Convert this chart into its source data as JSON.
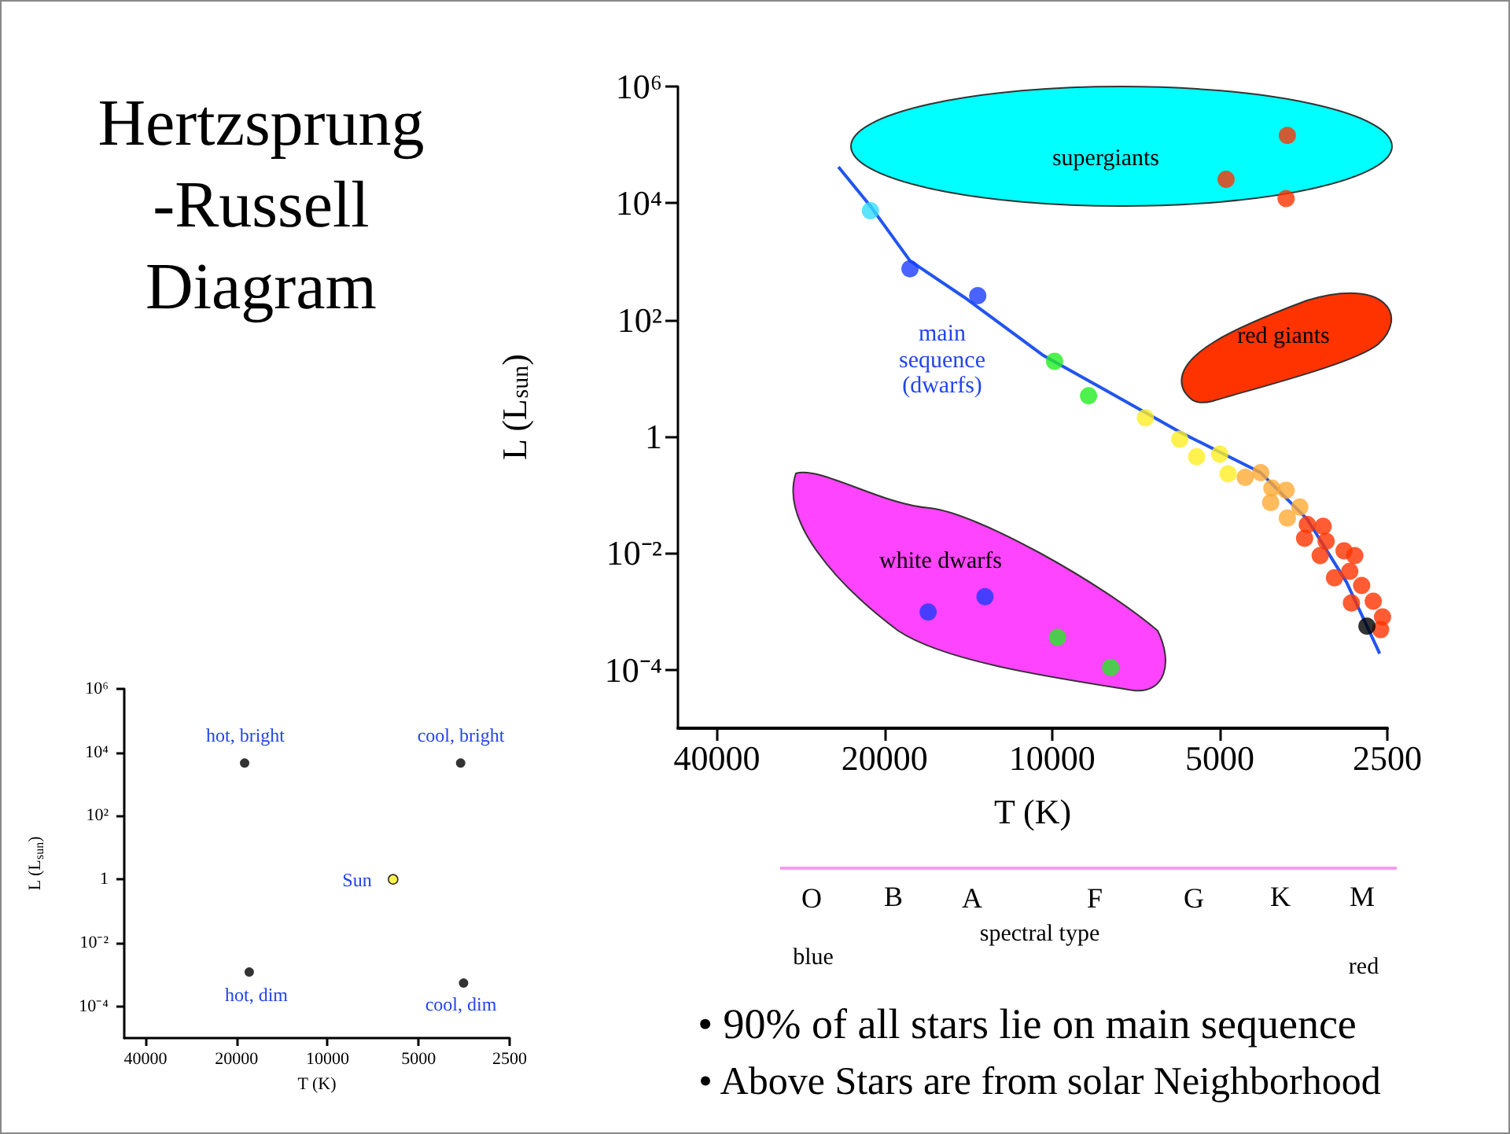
{
  "chart_data": [
    {
      "type": "scatter",
      "title": "Hertzsprung\n-Russell\nDiagram",
      "xlabel": "T (K)",
      "ylabel": "L (L$_{sun}$)",
      "log": "xy",
      "grid": false,
      "marker": "circle",
      "xlim": [
        47000,
        2500
      ],
      "xticks": [
        40000,
        20000,
        10000,
        5000,
        2500
      ],
      "ylim": [
        1e-05,
        1000000
      ],
      "yticks": [
        {
          "value": 1000000,
          "label": "10⁶"
        },
        {
          "value": 10000,
          "label": "10⁴"
        },
        {
          "value": 100,
          "label": "10²"
        },
        1,
        {
          "value": 0.01,
          "label": "10⁻²"
        },
        {
          "value": 0.0001,
          "label": "10⁻⁴"
        }
      ],
      "series": [
        {
          "type": "line",
          "color": "#2255ee",
          "marker": "none",
          "x": [
            24200,
            21200,
            18000,
            14400,
            10400,
            8060,
            5830,
            4220,
            3480,
            2960,
            2580
          ],
          "values": [
            41900,
            8900,
            1030,
            246,
            25,
            6.4,
            1.13,
            0.24,
            0.038,
            0.0032,
            0.00019
          ]
        },
        {
          "color": "#33ddff",
          "x": [
            21200
          ],
          "values": [
            7400
          ]
        },
        {
          "color": "#1a3cff",
          "x": [
            18000,
            13600,
            16700,
            13200
          ],
          "values": [
            750,
            260,
            0.00098,
            0.0018
          ]
        },
        {
          "color": "#22ee22",
          "x": [
            9900,
            8600,
            9780,
            7850
          ],
          "values": [
            19.5,
            5,
            0.00036,
            0.00011
          ]
        },
        {
          "color": "#ffee22",
          "x": [
            6800,
            5900,
            5500,
            5000,
            4830
          ],
          "values": [
            2.1,
            0.9,
            0.45,
            0.5,
            0.23
          ]
        },
        {
          "color": "#ffaa33",
          "x": [
            4500,
            4220,
            4030,
            3800,
            4050,
            3590,
            3780
          ],
          "values": [
            0.2,
            0.24,
            0.13,
            0.12,
            0.074,
            0.062,
            0.04
          ]
        },
        {
          "color": "#ff3300",
          "x": [
            3780,
            4870,
            3800,
            3480,
            3260,
            3520,
            3220,
            2990,
            3300,
            2860,
            3110,
            2920,
            2780,
            2900,
            2650,
            2550,
            2570
          ],
          "values": [
            145000,
            25700,
            12000,
            0.031,
            0.029,
            0.018,
            0.016,
            0.011,
            0.0091,
            0.0091,
            0.0038,
            0.0049,
            0.0028,
            0.0014,
            0.0015,
            0.00081,
            0.00049
          ]
        },
        {
          "color": "#000000",
          "x": [
            2720
          ],
          "values": [
            0.00056
          ]
        }
      ],
      "annotations": [
        "supergiants",
        "red giants",
        "main\nsequence\n(dwarfs)",
        "white dwarfs",
        "O",
        "B",
        "A",
        "F",
        "G",
        "K",
        "M",
        "spectral type",
        "blue",
        "red",
        "• 90% of all stars lie on main sequence",
        "• Above Stars are from solar Neighborhood"
      ]
    },
    {
      "type": "scatter",
      "xlabel": "T (K)",
      "ylabel": "L (L$_{sun}$)",
      "log": "xy",
      "grid": false,
      "marker": "circle",
      "xlim": [
        47000,
        2500
      ],
      "xticks": [
        40000,
        20000,
        10000,
        5000,
        2500
      ],
      "ylim": [
        1e-05,
        1000000
      ],
      "yticks": [
        {
          "value": 1000000,
          "label": "10⁶"
        },
        {
          "value": 10000,
          "label": "10⁴"
        },
        {
          "value": 100,
          "label": "10²"
        },
        1,
        {
          "value": 0.01,
          "label": "10⁻²"
        },
        {
          "value": 0.0001,
          "label": "10⁻⁴"
        }
      ],
      "series": [
        {
          "colors": [
            "#000000",
            "#000000",
            "#ffee22",
            "#000000",
            "#000000"
          ],
          "x": [
            18800,
            3630,
            6070,
            18150,
            3550
          ],
          "values": [
            4600,
            4600,
            1,
            0.0012,
            0.00054
          ]
        }
      ],
      "annotations": [
        "hot, bright",
        "cool, bright",
        "Sun",
        "hot, dim",
        "cool, dim"
      ]
    }
  ]
}
